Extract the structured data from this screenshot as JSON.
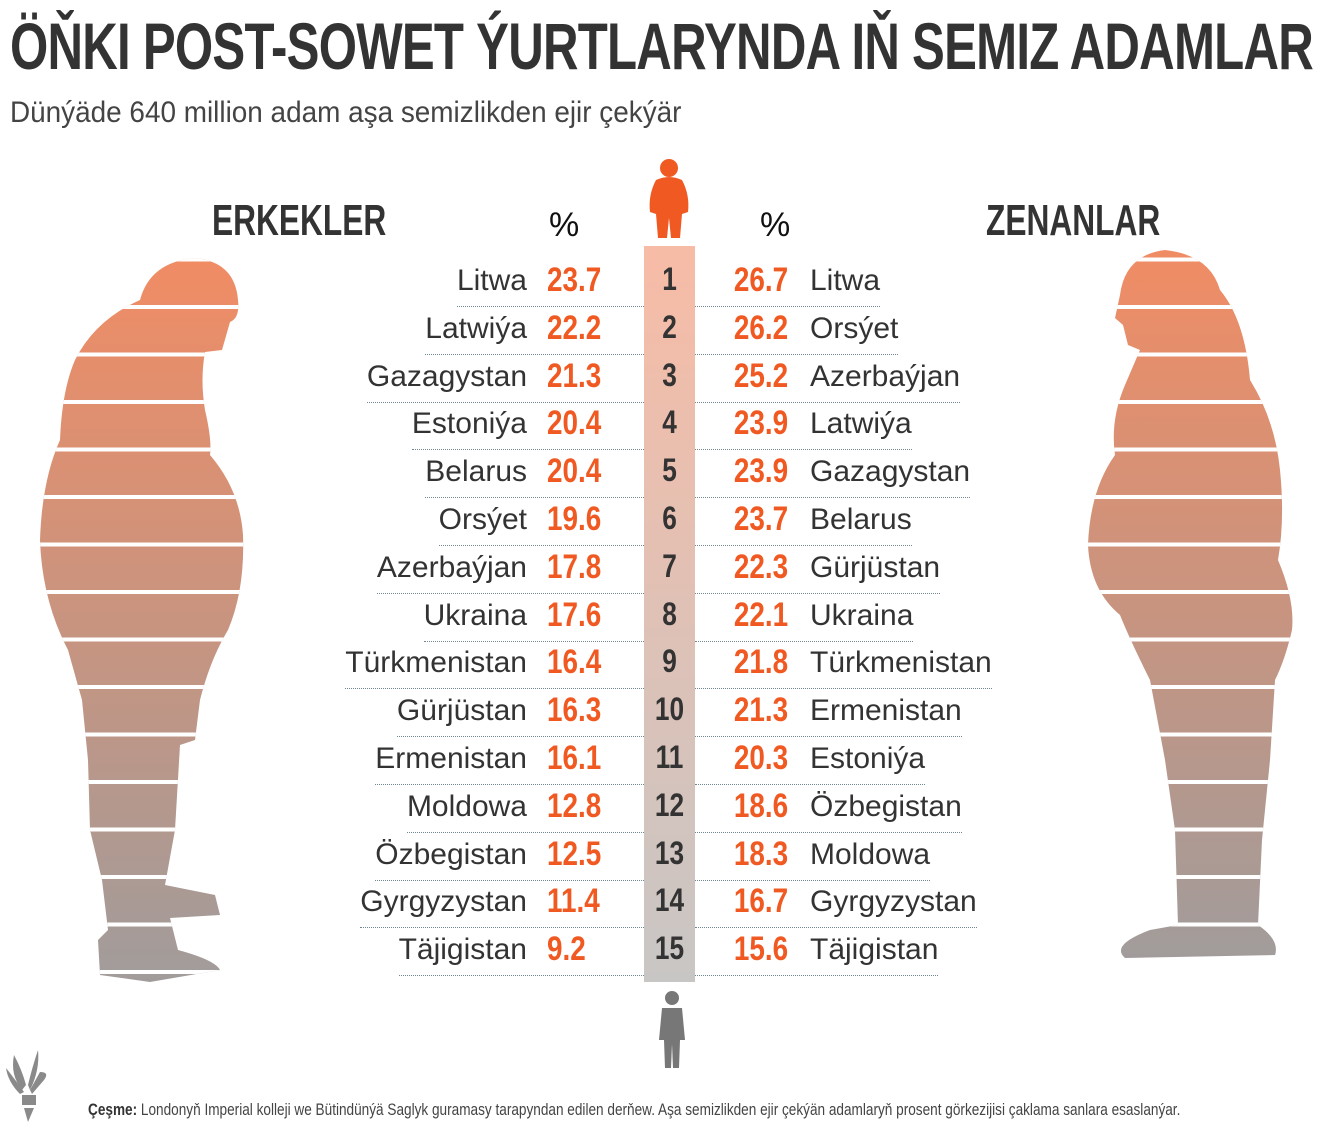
{
  "title": "ÖŇKI POST-SOWET ÝURTLARYNDA IŇ SEMIZ ADAMLAR",
  "subtitle": "Dünýäde 640 million adam aşa semizlikden ejir çekýär",
  "colors": {
    "accent": "#f05a22",
    "text": "#333333",
    "rank_top": "#f7bca6",
    "rank_bottom": "#c8c6c5",
    "silhouette_top": "#f08c64",
    "silhouette_bottom": "#a19c9b"
  },
  "source": {
    "label": "Çeşme:",
    "text": "Londonyň Imperial kolleji we Bütindünýä Saglyk guramasy tarapyndan edilen derňew. Aşa semizlikden ejir çekýän adamlaryň prosent görkezijisi çaklama sanlara esaslanýar."
  },
  "chart_data": {
    "type": "table",
    "men": {
      "header": "ERKEKLER",
      "unit": "%",
      "countries": [
        "Litwa",
        "Latwiýa",
        "Gazagystan",
        "Estoniýa",
        "Belarus",
        "Orsýet",
        "Azerbaýjan",
        "Ukraina",
        "Türkmenistan",
        "Gürjüstan",
        "Ermenistan",
        "Moldowa",
        "Özbegistan",
        "Gyrgyzystan",
        "Täjigistan"
      ],
      "values": [
        "23.7",
        "22.2",
        "21.3",
        "20.4",
        "20.4",
        "19.6",
        "17.8",
        "17.6",
        "16.4",
        "16.3",
        "16.1",
        "12.8",
        "12.5",
        "11.4",
        "9.2"
      ]
    },
    "ranks": [
      "1",
      "2",
      "3",
      "4",
      "5",
      "6",
      "7",
      "8",
      "9",
      "10",
      "11",
      "12",
      "13",
      "14",
      "15"
    ],
    "women": {
      "header": "ZENANLAR",
      "unit": "%",
      "countries": [
        "Litwa",
        "Orsýet",
        "Azerbaýjan",
        "Latwiýa",
        "Gazagystan",
        "Belarus",
        "Gürjüstan",
        "Ukraina",
        "Türkmenistan",
        "Ermenistan",
        "Estoniýa",
        "Özbegistan",
        "Moldowa",
        "Gyrgyzystan",
        "Täjigistan"
      ],
      "values": [
        "26.7",
        "26.2",
        "25.2",
        "23.9",
        "23.9",
        "23.7",
        "22.3",
        "22.1",
        "21.8",
        "21.3",
        "20.3",
        "18.6",
        "18.3",
        "16.7",
        "15.6"
      ]
    }
  }
}
